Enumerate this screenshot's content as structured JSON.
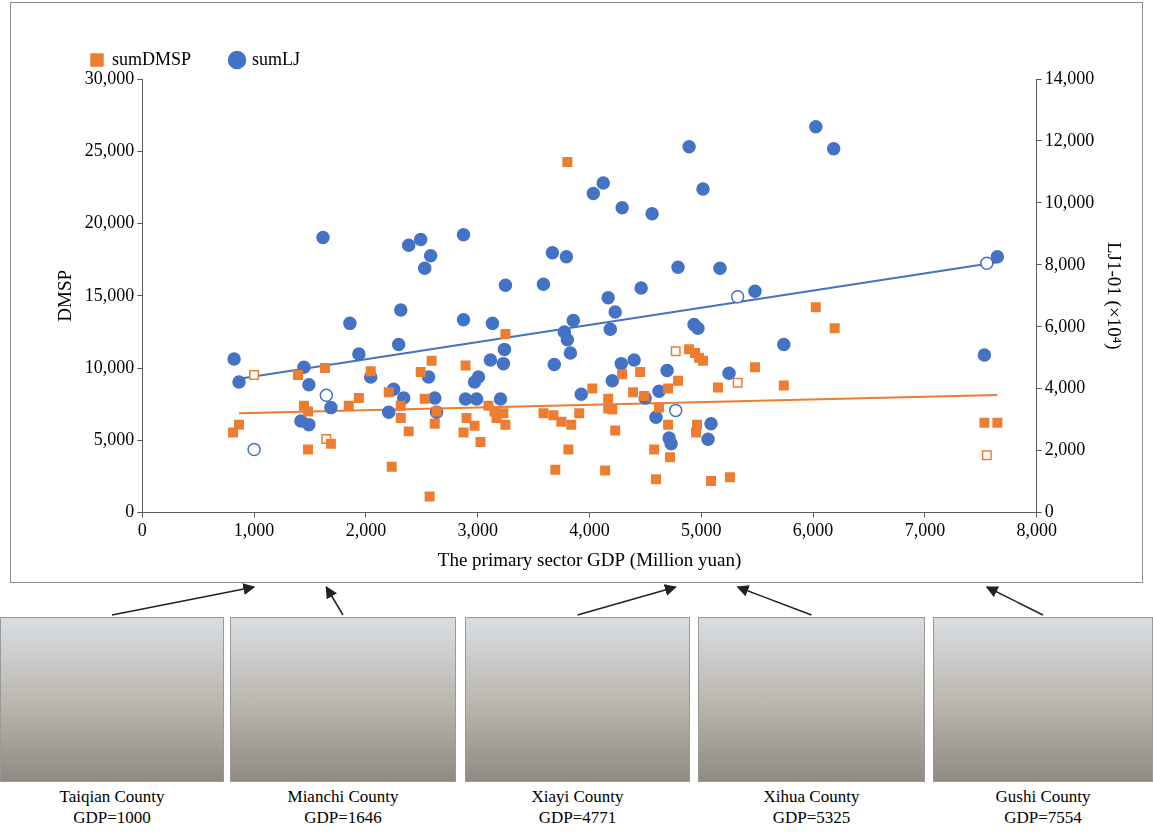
{
  "chart_data": {
    "type": "scatter",
    "xlabel": "The primary sector GDP (Million yuan)",
    "ylabel": "DMSP",
    "y2label": "LJ1-01 (×10⁴)",
    "xlim": [
      0,
      8000
    ],
    "xticks": [
      0,
      1000,
      2000,
      3000,
      4000,
      5000,
      6000,
      7000,
      8000
    ],
    "ylim": [
      0,
      30000
    ],
    "yticks": [
      0,
      5000,
      10000,
      15000,
      20000,
      25000,
      30000
    ],
    "y2lim": [
      0,
      14000
    ],
    "y2ticks": [
      0,
      2000,
      4000,
      6000,
      8000,
      10000,
      12000,
      14000
    ],
    "grid": false,
    "legend": "top-left",
    "series": [
      {
        "name": "sumDMSP",
        "color": "#ED7D31",
        "marker": "square",
        "axis": "y",
        "x": [
          812,
          865,
          1000,
          1392,
          1446,
          1482,
          1482,
          1634,
          1646,
          1687,
          1847,
          1937,
          2043,
          2204,
          2231,
          2312,
          2312,
          2383,
          2490,
          2526,
          2570,
          2588,
          2616,
          2632,
          2873,
          2891,
          2900,
          2972,
          3025,
          3096,
          3150,
          3168,
          3230,
          3248,
          3248,
          3588,
          3677,
          3694,
          3748,
          3802,
          3811,
          3837,
          3908,
          4025,
          4140,
          4167,
          4167,
          4204,
          4230,
          4292,
          4390,
          4453,
          4489,
          4578,
          4595,
          4622,
          4703,
          4721,
          4703,
          4771,
          4792,
          4891,
          4944,
          4979,
          5015,
          4962,
          4953,
          5087,
          5149,
          5256,
          5325,
          5480,
          5738,
          6024,
          6193,
          7532,
          7648,
          7554
        ],
        "values": [
          5550,
          6080,
          9520,
          9520,
          7400,
          7000,
          4360,
          10000,
          5090,
          4760,
          7400,
          7930,
          9780,
          8330,
          3170,
          7400,
          6540,
          5620,
          9720,
          7870,
          1120,
          10500,
          6150,
          7000,
          5550,
          10180,
          6540,
          6010,
          4890,
          7400,
          7000,
          6540,
          6870,
          6080,
          12360,
          6870,
          6740,
          2970,
          6280,
          24260,
          4360,
          6080,
          6870,
          8590,
          2910,
          7870,
          7200,
          7140,
          5680,
          9580,
          8330,
          9720,
          8060,
          4360,
          2310,
          7270,
          6080,
          3830,
          8590,
          11170,
          9120,
          11300,
          11040,
          10710,
          10510,
          6080,
          5550,
          2180,
          8660,
          2450,
          8990,
          10050,
          8790,
          14210,
          12760,
          6210,
          6210,
          3970
        ],
        "trend": {
          "x": [
            865,
            7648
          ],
          "values": [
            6870,
            8130
          ]
        }
      },
      {
        "name": "sumLJ",
        "color": "#4472C4",
        "marker": "circle",
        "axis": "y2",
        "x": [
          821,
          865,
          1000,
          1419,
          1446,
          1490,
          1490,
          1616,
          1646,
          1687,
          1857,
          1937,
          2043,
          2204,
          2248,
          2293,
          2312,
          2338,
          2383,
          2490,
          2526,
          2579,
          2561,
          2616,
          2632,
          2873,
          2873,
          2891,
          2972,
          2990,
          3007,
          3114,
          3132,
          3204,
          3230,
          3239,
          3248,
          3588,
          3668,
          3685,
          3775,
          3793,
          3802,
          3829,
          3855,
          3926,
          4034,
          4123,
          4167,
          4186,
          4204,
          4230,
          4284,
          4292,
          4399,
          4462,
          4498,
          4560,
          4595,
          4622,
          4694,
          4712,
          4730,
          4771,
          4792,
          4891,
          4935,
          4970,
          5015,
          5060,
          5087,
          5167,
          5248,
          5325,
          5480,
          5738,
          6024,
          6184,
          7532,
          7554,
          7648
        ],
        "values": [
          4960,
          4220,
          2040,
          2960,
          4690,
          4130,
          2840,
          8880,
          3790,
          3390,
          6110,
          5120,
          4380,
          3240,
          3980,
          5430,
          6540,
          3700,
          8630,
          8820,
          7890,
          8290,
          4380,
          3700,
          3240,
          8970,
          6230,
          3670,
          4220,
          3670,
          4380,
          4930,
          6110,
          3670,
          4810,
          5270,
          7340,
          7370,
          8390,
          4780,
          5830,
          8260,
          5580,
          5150,
          6200,
          3820,
          10300,
          10640,
          6940,
          5920,
          4260,
          6480,
          4810,
          9840,
          4930,
          7250,
          3700,
          9650,
          3080,
          3920,
          4590,
          2410,
          2220,
          3300,
          7920,
          11810,
          6070,
          5950,
          10450,
          2370,
          2870,
          7890,
          4500,
          6970,
          7150,
          5430,
          12460,
          11750,
          5090,
          8050,
          8260
        ],
        "trend": {
          "x": [
            865,
            7648
          ],
          "values": [
            4320,
            8080
          ]
        }
      }
    ]
  },
  "photos": [
    {
      "name": "Taiqian County",
      "gdp_label": "GDP=1000",
      "gdp": 1000
    },
    {
      "name": "Mianchi County",
      "gdp_label": "GDP=1646",
      "gdp": 1646
    },
    {
      "name": "Xiayi County",
      "gdp_label": "GDP=4771",
      "gdp": 4771
    },
    {
      "name": "Xihua County",
      "gdp_label": "GDP=5325",
      "gdp": 5325
    },
    {
      "name": "Gushi County",
      "gdp_label": "GDP=7554",
      "gdp": 7554
    }
  ]
}
